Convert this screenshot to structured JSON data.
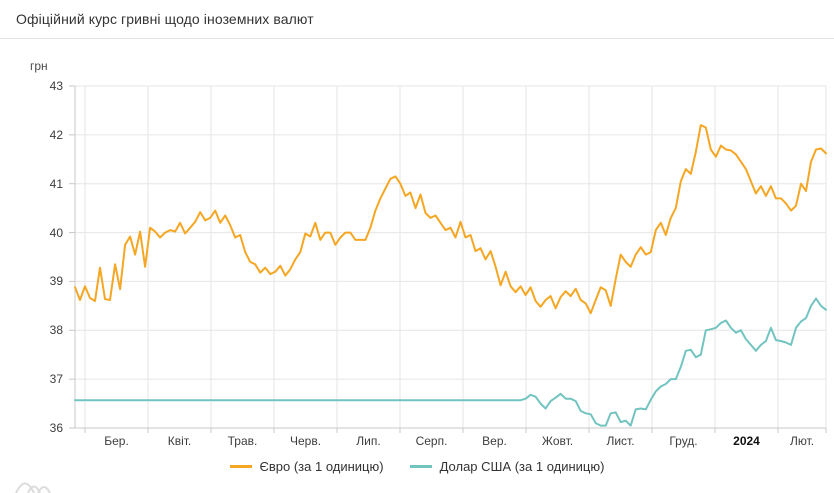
{
  "page": {
    "title": "Офіційний курс гривні щодо іноземних валют"
  },
  "colors": {
    "euro_line": "#f5a623",
    "dollar_line": "#72c4c0",
    "gridline": "#e6e6e6",
    "axis": "#c9c9c9",
    "text": "#3d3d3d"
  },
  "chart_data": {
    "type": "line",
    "title": "Офіційний курс гривні щодо іноземних валют",
    "y_axis": {
      "unit_label": "грн",
      "min": 36,
      "max": 43,
      "ticks": [
        43,
        42,
        41,
        40,
        39,
        38,
        37,
        36
      ]
    },
    "x_axis": {
      "labels": [
        "Бер.",
        "Квіт.",
        "Трав.",
        "Черв.",
        "Лип.",
        "Серп.",
        "Вер.",
        "Жовт.",
        "Лист.",
        "Груд.",
        "2024",
        "Лют."
      ],
      "bold_labels": [
        "2024"
      ]
    },
    "grid": true,
    "legend_position": "bottom",
    "series": [
      {
        "name": "Євро (за 1 одиницю)",
        "color": "#f5a623",
        "values": [
          38.88,
          38.62,
          38.9,
          38.66,
          38.6,
          39.28,
          38.64,
          38.62,
          39.35,
          38.84,
          39.75,
          39.92,
          39.55,
          40.02,
          39.3,
          40.1,
          40.02,
          39.9,
          40.0,
          40.05,
          40.02,
          40.2,
          39.98,
          40.1,
          40.22,
          40.42,
          40.25,
          40.3,
          40.45,
          40.2,
          40.35,
          40.15,
          39.9,
          39.95,
          39.6,
          39.4,
          39.35,
          39.18,
          39.28,
          39.15,
          39.2,
          39.32,
          39.12,
          39.25,
          39.45,
          39.6,
          39.98,
          39.92,
          40.2,
          39.85,
          40.0,
          40.0,
          39.75,
          39.9,
          40.0,
          40.0,
          39.85,
          39.85,
          39.85,
          40.1,
          40.45,
          40.7,
          40.9,
          41.1,
          41.15,
          41.0,
          40.75,
          40.82,
          40.5,
          40.78,
          40.4,
          40.3,
          40.35,
          40.2,
          40.05,
          40.1,
          39.9,
          40.22,
          39.9,
          39.95,
          39.62,
          39.68,
          39.45,
          39.62,
          39.3,
          38.92,
          39.2,
          38.9,
          38.78,
          38.9,
          38.72,
          38.88,
          38.6,
          38.48,
          38.62,
          38.7,
          38.45,
          38.68,
          38.8,
          38.7,
          38.85,
          38.62,
          38.55,
          38.35,
          38.62,
          38.88,
          38.82,
          38.5,
          39.05,
          39.55,
          39.4,
          39.3,
          39.55,
          39.7,
          39.55,
          39.6,
          40.05,
          40.2,
          39.95,
          40.3,
          40.5,
          41.05,
          41.3,
          41.2,
          41.65,
          42.2,
          42.15,
          41.7,
          41.55,
          41.78,
          41.7,
          41.68,
          41.6,
          41.45,
          41.3,
          41.05,
          40.8,
          40.95,
          40.75,
          40.95,
          40.7,
          40.7,
          40.6,
          40.45,
          40.55,
          41.0,
          40.85,
          41.45,
          41.7,
          41.72,
          41.62
        ]
      },
      {
        "name": "Долар США (за 1 одиницю)",
        "color": "#72c4c0",
        "values": [
          36.57,
          36.57,
          36.57,
          36.57,
          36.57,
          36.57,
          36.57,
          36.57,
          36.57,
          36.57,
          36.57,
          36.57,
          36.57,
          36.57,
          36.57,
          36.57,
          36.57,
          36.57,
          36.57,
          36.57,
          36.57,
          36.57,
          36.57,
          36.57,
          36.57,
          36.57,
          36.57,
          36.57,
          36.57,
          36.57,
          36.57,
          36.57,
          36.57,
          36.57,
          36.57,
          36.57,
          36.57,
          36.57,
          36.57,
          36.57,
          36.57,
          36.57,
          36.57,
          36.57,
          36.57,
          36.57,
          36.57,
          36.57,
          36.57,
          36.57,
          36.57,
          36.57,
          36.57,
          36.57,
          36.57,
          36.57,
          36.57,
          36.57,
          36.57,
          36.57,
          36.57,
          36.57,
          36.57,
          36.57,
          36.57,
          36.57,
          36.57,
          36.57,
          36.57,
          36.57,
          36.57,
          36.57,
          36.57,
          36.57,
          36.57,
          36.57,
          36.57,
          36.57,
          36.57,
          36.57,
          36.57,
          36.57,
          36.57,
          36.57,
          36.57,
          36.57,
          36.57,
          36.57,
          36.57,
          36.57,
          36.6,
          36.68,
          36.64,
          36.5,
          36.4,
          36.55,
          36.62,
          36.7,
          36.6,
          36.6,
          36.55,
          36.35,
          36.3,
          36.28,
          36.1,
          36.05,
          36.05,
          36.3,
          36.32,
          36.12,
          36.15,
          36.05,
          36.38,
          36.4,
          36.38,
          36.58,
          36.75,
          36.85,
          36.9,
          37.0,
          37.0,
          37.25,
          37.58,
          37.6,
          37.45,
          37.5,
          38.0,
          38.02,
          38.05,
          38.15,
          38.2,
          38.05,
          37.95,
          38.0,
          37.82,
          37.7,
          37.58,
          37.7,
          37.78,
          38.05,
          37.8,
          37.78,
          37.75,
          37.7,
          38.05,
          38.18,
          38.25,
          38.5,
          38.65,
          38.5,
          38.42
        ]
      }
    ]
  }
}
